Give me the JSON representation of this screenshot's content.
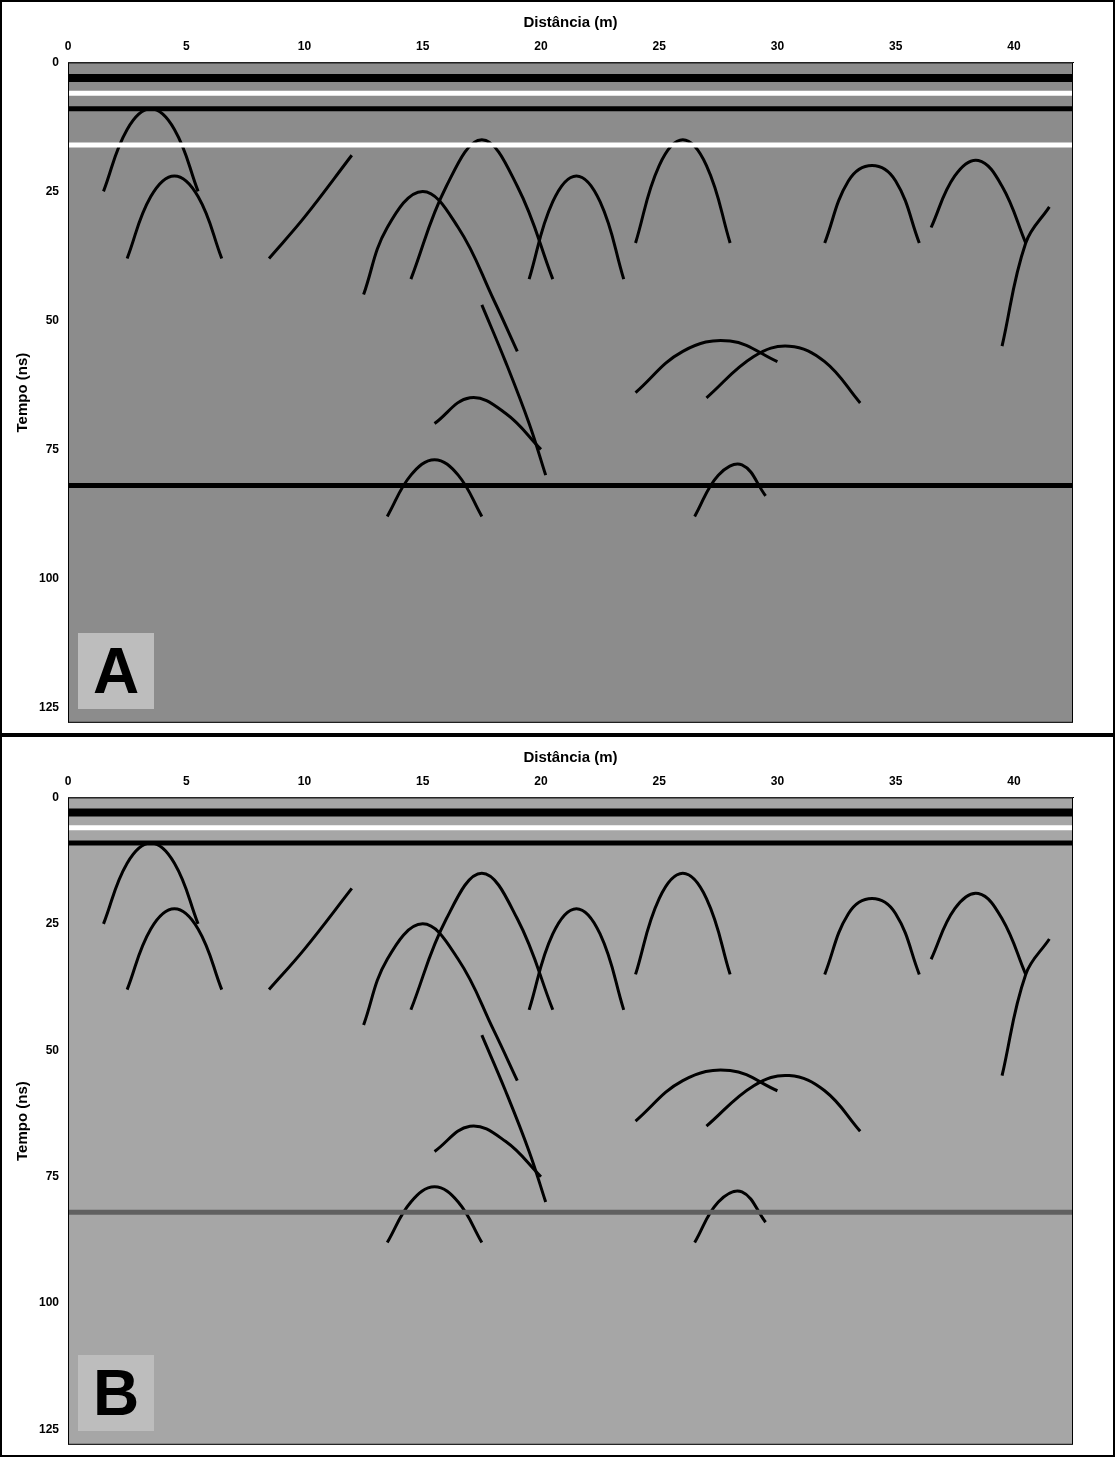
{
  "chart_data": [
    {
      "type": "line",
      "title": "A",
      "x_label": "Distância (m)",
      "y_label": "Tempo (ns)",
      "xlim": [
        0,
        42.5
      ],
      "xticks": [
        0,
        5,
        10,
        15,
        20,
        25,
        30,
        35,
        40
      ],
      "ylim": [
        0,
        128
      ],
      "yticks": [
        0,
        25,
        50,
        75,
        100,
        125
      ],
      "grid": false,
      "series": [
        {
          "color": "#000000",
          "x": [
            0,
            42.5
          ],
          "values": [
            3,
            3
          ]
        },
        {
          "color": "#ffffff",
          "x": [
            0,
            42.5
          ],
          "values": [
            6,
            6
          ]
        },
        {
          "color": "#000000",
          "x": [
            0,
            42.5
          ],
          "values": [
            9,
            9
          ]
        },
        {
          "color": "#ffffff",
          "x": [
            0,
            42.5
          ],
          "values": [
            16,
            16
          ]
        },
        {
          "color": "#000000",
          "x": [
            0,
            42.5
          ],
          "values": [
            82,
            82
          ]
        },
        {
          "color": "#000000",
          "x": [
            1.5,
            2.5,
            3.5,
            4.5,
            5.5
          ],
          "values": [
            25,
            13,
            9,
            13,
            25
          ]
        },
        {
          "color": "#000000",
          "x": [
            2.5,
            3.5,
            4.5,
            5.5,
            6.5
          ],
          "values": [
            38,
            26,
            22,
            26,
            38
          ]
        },
        {
          "color": "#000000",
          "x": [
            8.5,
            10,
            12
          ],
          "values": [
            38,
            30,
            18
          ]
        },
        {
          "color": "#000000",
          "x": [
            12.5,
            13.5,
            15,
            16.5,
            18,
            19
          ],
          "values": [
            45,
            32,
            25,
            32,
            46,
            56
          ]
        },
        {
          "color": "#000000",
          "x": [
            14.5,
            16,
            17.5,
            19,
            20.5
          ],
          "values": [
            42,
            24,
            15,
            24,
            42
          ]
        },
        {
          "color": "#000000",
          "x": [
            19.5,
            20.5,
            21.5,
            22.5,
            23.5
          ],
          "values": [
            42,
            27,
            22,
            27,
            42
          ]
        },
        {
          "color": "#000000",
          "x": [
            24,
            25,
            26,
            27,
            28
          ],
          "values": [
            35,
            20,
            15,
            20,
            35
          ]
        },
        {
          "color": "#000000",
          "x": [
            17.5,
            18.5,
            19.5,
            20.2
          ],
          "values": [
            47,
            58,
            70,
            80
          ]
        },
        {
          "color": "#000000",
          "x": [
            15.5,
            17,
            18.5,
            20
          ],
          "values": [
            70,
            65,
            68,
            75
          ]
        },
        {
          "color": "#000000",
          "x": [
            24,
            26,
            28,
            30
          ],
          "values": [
            64,
            56,
            54,
            58
          ]
        },
        {
          "color": "#000000",
          "x": [
            27,
            29,
            30.5,
            32,
            33.5
          ],
          "values": [
            65,
            57,
            55,
            58,
            66
          ]
        },
        {
          "color": "#000000",
          "x": [
            32,
            33,
            34,
            35,
            36
          ],
          "values": [
            35,
            23,
            20,
            23,
            35
          ]
        },
        {
          "color": "#000000",
          "x": [
            36.5,
            37.5,
            38.5,
            39.5,
            40.5
          ],
          "values": [
            32,
            22,
            19,
            24,
            35
          ]
        },
        {
          "color": "#000000",
          "x": [
            39.5,
            40.5,
            41.5
          ],
          "values": [
            55,
            35,
            28
          ]
        },
        {
          "color": "#000000",
          "x": [
            13.5,
            14.5,
            15.5,
            16.5,
            17.5
          ],
          "values": [
            88,
            80,
            77,
            80,
            88
          ]
        },
        {
          "color": "#000000",
          "x": [
            26.5,
            27.5,
            28.5,
            29.5
          ],
          "values": [
            88,
            80,
            78,
            84
          ]
        }
      ]
    },
    {
      "type": "line",
      "title": "B",
      "x_label": "Distância (m)",
      "y_label": "Tempo (ns)",
      "xlim": [
        0,
        42.5
      ],
      "xticks": [
        0,
        5,
        10,
        15,
        20,
        25,
        30,
        35,
        40
      ],
      "ylim": [
        0,
        128
      ],
      "yticks": [
        0,
        25,
        50,
        75,
        100,
        125
      ],
      "grid": false,
      "series": [
        {
          "color": "#000000",
          "x": [
            0,
            42.5
          ],
          "values": [
            3,
            3
          ]
        },
        {
          "color": "#ffffff",
          "x": [
            0,
            42.5
          ],
          "values": [
            6,
            6
          ]
        },
        {
          "color": "#000000",
          "x": [
            0,
            42.5
          ],
          "values": [
            9,
            9
          ]
        },
        {
          "color": "#606060",
          "x": [
            0,
            42.5
          ],
          "values": [
            82,
            82
          ]
        },
        {
          "color": "#000000",
          "x": [
            1.5,
            2.5,
            3.5,
            4.5,
            5.5
          ],
          "values": [
            25,
            13,
            9,
            13,
            25
          ]
        },
        {
          "color": "#000000",
          "x": [
            2.5,
            3.5,
            4.5,
            5.5,
            6.5
          ],
          "values": [
            38,
            26,
            22,
            26,
            38
          ]
        },
        {
          "color": "#000000",
          "x": [
            8.5,
            10,
            12
          ],
          "values": [
            38,
            30,
            18
          ]
        },
        {
          "color": "#000000",
          "x": [
            12.5,
            13.5,
            15,
            16.5,
            18,
            19
          ],
          "values": [
            45,
            32,
            25,
            32,
            46,
            56
          ]
        },
        {
          "color": "#000000",
          "x": [
            14.5,
            16,
            17.5,
            19,
            20.5
          ],
          "values": [
            42,
            24,
            15,
            24,
            42
          ]
        },
        {
          "color": "#000000",
          "x": [
            19.5,
            20.5,
            21.5,
            22.5,
            23.5
          ],
          "values": [
            42,
            27,
            22,
            27,
            42
          ]
        },
        {
          "color": "#000000",
          "x": [
            24,
            25,
            26,
            27,
            28
          ],
          "values": [
            35,
            20,
            15,
            20,
            35
          ]
        },
        {
          "color": "#000000",
          "x": [
            17.5,
            18.5,
            19.5,
            20.2
          ],
          "values": [
            47,
            58,
            70,
            80
          ]
        },
        {
          "color": "#000000",
          "x": [
            15.5,
            17,
            18.5,
            20
          ],
          "values": [
            70,
            65,
            68,
            75
          ]
        },
        {
          "color": "#000000",
          "x": [
            24,
            26,
            28,
            30
          ],
          "values": [
            64,
            56,
            54,
            58
          ]
        },
        {
          "color": "#000000",
          "x": [
            27,
            29,
            30.5,
            32,
            33.5
          ],
          "values": [
            65,
            57,
            55,
            58,
            66
          ]
        },
        {
          "color": "#000000",
          "x": [
            32,
            33,
            34,
            35,
            36
          ],
          "values": [
            35,
            23,
            20,
            23,
            35
          ]
        },
        {
          "color": "#000000",
          "x": [
            36.5,
            37.5,
            38.5,
            39.5,
            40.5
          ],
          "values": [
            32,
            22,
            19,
            24,
            35
          ]
        },
        {
          "color": "#000000",
          "x": [
            39.5,
            40.5,
            41.5
          ],
          "values": [
            55,
            35,
            28
          ]
        },
        {
          "color": "#000000",
          "x": [
            13.5,
            14.5,
            15.5,
            16.5,
            17.5
          ],
          "values": [
            88,
            80,
            77,
            80,
            88
          ]
        },
        {
          "color": "#000000",
          "x": [
            26.5,
            27.5,
            28.5,
            29.5
          ],
          "values": [
            88,
            80,
            78,
            84
          ]
        }
      ]
    }
  ]
}
